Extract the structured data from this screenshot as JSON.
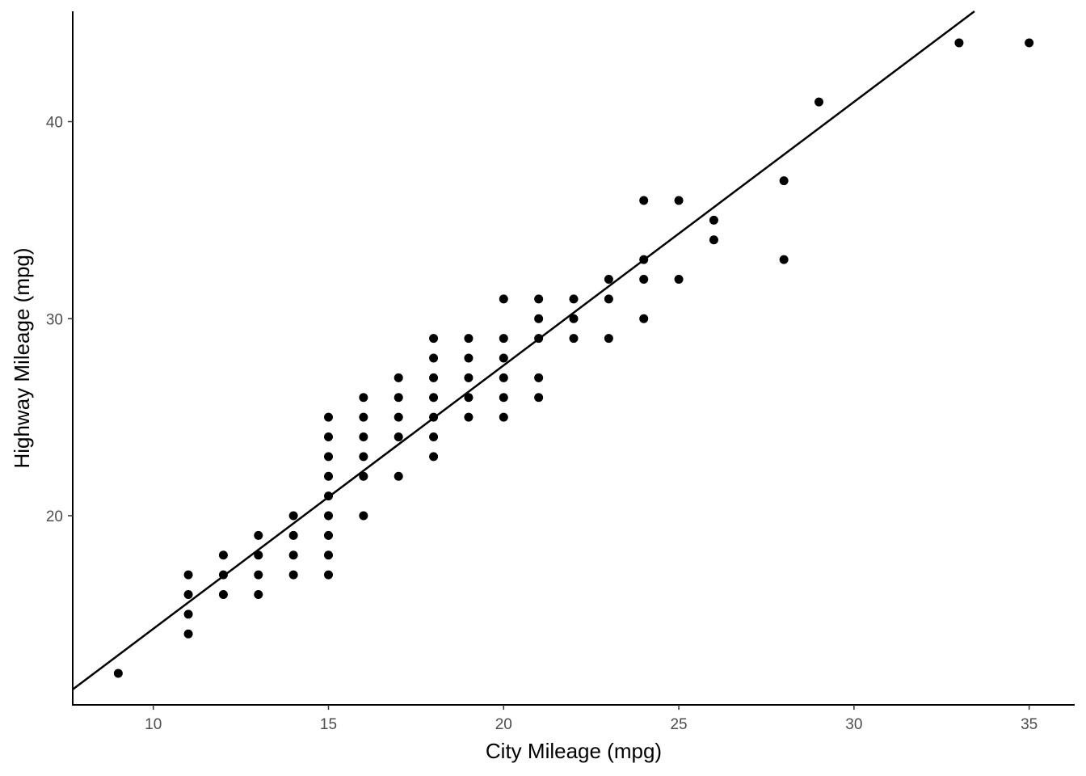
{
  "chart_data": {
    "type": "scatter",
    "title": "",
    "xlabel": "City Mileage (mpg)",
    "ylabel": "Highway Mileage (mpg)",
    "xlim": [
      7.7,
      36.3
    ],
    "ylim": [
      10.4,
      45.6
    ],
    "xticks": [
      10,
      15,
      20,
      25,
      30,
      35
    ],
    "yticks": [
      20,
      30,
      40
    ],
    "grid": false,
    "legend": "none",
    "point_color": "#000000",
    "points": [
      [
        9,
        12
      ],
      [
        11,
        14
      ],
      [
        11,
        15
      ],
      [
        11,
        16
      ],
      [
        11,
        17
      ],
      [
        12,
        16
      ],
      [
        12,
        17
      ],
      [
        12,
        18
      ],
      [
        13,
        16
      ],
      [
        13,
        17
      ],
      [
        13,
        18
      ],
      [
        13,
        19
      ],
      [
        14,
        17
      ],
      [
        14,
        18
      ],
      [
        14,
        19
      ],
      [
        14,
        20
      ],
      [
        15,
        17
      ],
      [
        15,
        18
      ],
      [
        15,
        19
      ],
      [
        15,
        20
      ],
      [
        15,
        21
      ],
      [
        15,
        22
      ],
      [
        15,
        23
      ],
      [
        15,
        24
      ],
      [
        15,
        25
      ],
      [
        16,
        20
      ],
      [
        16,
        22
      ],
      [
        16,
        23
      ],
      [
        16,
        24
      ],
      [
        16,
        25
      ],
      [
        16,
        26
      ],
      [
        17,
        22
      ],
      [
        17,
        24
      ],
      [
        17,
        25
      ],
      [
        17,
        26
      ],
      [
        17,
        27
      ],
      [
        18,
        23
      ],
      [
        18,
        24
      ],
      [
        18,
        25
      ],
      [
        18,
        26
      ],
      [
        18,
        27
      ],
      [
        18,
        28
      ],
      [
        18,
        29
      ],
      [
        19,
        25
      ],
      [
        19,
        26
      ],
      [
        19,
        27
      ],
      [
        19,
        28
      ],
      [
        19,
        29
      ],
      [
        20,
        25
      ],
      [
        20,
        26
      ],
      [
        20,
        27
      ],
      [
        20,
        28
      ],
      [
        20,
        29
      ],
      [
        20,
        31
      ],
      [
        21,
        26
      ],
      [
        21,
        27
      ],
      [
        21,
        29
      ],
      [
        21,
        30
      ],
      [
        21,
        31
      ],
      [
        22,
        29
      ],
      [
        22,
        30
      ],
      [
        22,
        31
      ],
      [
        23,
        29
      ],
      [
        23,
        31
      ],
      [
        23,
        32
      ],
      [
        24,
        30
      ],
      [
        24,
        32
      ],
      [
        24,
        33
      ],
      [
        24,
        36
      ],
      [
        25,
        32
      ],
      [
        25,
        36
      ],
      [
        26,
        34
      ],
      [
        26,
        35
      ],
      [
        28,
        33
      ],
      [
        28,
        37
      ],
      [
        29,
        41
      ],
      [
        33,
        44
      ],
      [
        35,
        44
      ]
    ],
    "fit_line": {
      "type": "linear",
      "intercept": 0.892,
      "slope": 1.337
    }
  }
}
